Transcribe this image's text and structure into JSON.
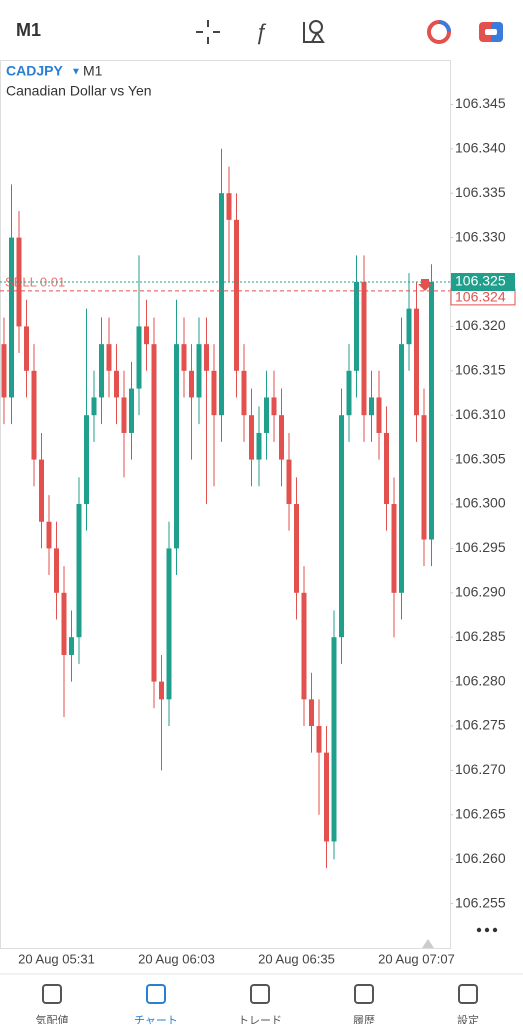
{
  "header": {
    "timeframe": "M1"
  },
  "chart_data": {
    "type": "candlestick",
    "symbol": "CADJPY",
    "timeframe": "M1",
    "subtitle": "Canadian Dollar vs Yen",
    "categories": [
      null,
      null,
      null,
      null,
      null,
      null,
      null,
      "20 Aug 05:31",
      null,
      null,
      null,
      null,
      null,
      null,
      null,
      null,
      null,
      null,
      null,
      null,
      null,
      null,
      null,
      "20 Aug 06:03",
      null,
      null,
      null,
      null,
      null,
      null,
      null,
      null,
      null,
      null,
      null,
      null,
      null,
      null,
      null,
      "20 Aug 06:35",
      null,
      null,
      null,
      null,
      null,
      null,
      null,
      null,
      null,
      null,
      null,
      null,
      null,
      null,
      null,
      "20 Aug 07:07",
      null,
      null
    ],
    "open": [
      106.318,
      106.312,
      106.33,
      106.32,
      106.315,
      106.305,
      106.298,
      106.295,
      106.29,
      106.283,
      106.285,
      106.3,
      106.31,
      106.312,
      106.318,
      106.315,
      106.312,
      106.308,
      106.313,
      106.32,
      106.318,
      106.28,
      106.278,
      106.295,
      106.318,
      106.315,
      106.312,
      106.318,
      106.315,
      106.31,
      106.335,
      106.332,
      106.315,
      106.31,
      106.305,
      106.308,
      106.312,
      106.31,
      106.305,
      106.3,
      106.29,
      106.278,
      106.275,
      106.272,
      106.262,
      106.285,
      106.31,
      106.315,
      106.325,
      106.31,
      106.312,
      106.308,
      106.3,
      106.29,
      106.318,
      106.322,
      106.31,
      106.296
    ],
    "high": [
      106.321,
      106.336,
      106.333,
      106.323,
      106.318,
      106.308,
      106.301,
      106.298,
      106.293,
      106.288,
      106.303,
      106.322,
      106.315,
      106.321,
      106.321,
      106.318,
      106.315,
      106.316,
      106.328,
      106.323,
      106.321,
      106.283,
      106.298,
      106.323,
      106.321,
      106.318,
      106.321,
      106.321,
      106.318,
      106.34,
      106.338,
      106.335,
      106.318,
      106.313,
      106.311,
      106.315,
      106.315,
      106.313,
      106.308,
      106.303,
      106.293,
      106.281,
      106.278,
      106.275,
      106.288,
      106.313,
      106.318,
      106.328,
      106.328,
      106.315,
      106.315,
      106.311,
      106.303,
      106.321,
      106.326,
      106.325,
      106.313,
      106.327
    ],
    "low": [
      106.309,
      106.309,
      106.317,
      106.312,
      106.302,
      106.295,
      106.292,
      106.287,
      106.276,
      106.28,
      106.282,
      106.297,
      106.307,
      106.309,
      106.312,
      106.309,
      106.303,
      106.305,
      106.31,
      106.315,
      106.277,
      106.27,
      106.275,
      106.292,
      106.312,
      106.305,
      106.309,
      106.3,
      106.302,
      106.307,
      106.325,
      106.312,
      106.307,
      106.302,
      106.302,
      106.305,
      106.307,
      106.302,
      106.297,
      106.287,
      106.275,
      106.272,
      106.265,
      106.259,
      106.26,
      106.282,
      106.307,
      106.312,
      106.307,
      106.307,
      106.305,
      106.297,
      106.285,
      106.287,
      106.315,
      106.307,
      106.293,
      106.293
    ],
    "close": [
      106.312,
      106.33,
      106.32,
      106.315,
      106.305,
      106.298,
      106.295,
      106.29,
      106.283,
      106.285,
      106.3,
      106.31,
      106.312,
      106.318,
      106.315,
      106.312,
      106.308,
      106.313,
      106.32,
      106.318,
      106.28,
      106.278,
      106.295,
      106.318,
      106.315,
      106.312,
      106.318,
      106.315,
      106.31,
      106.335,
      106.332,
      106.315,
      106.31,
      106.305,
      106.308,
      106.312,
      106.31,
      106.305,
      106.3,
      106.29,
      106.278,
      106.275,
      106.272,
      106.262,
      106.285,
      106.31,
      106.315,
      106.325,
      106.31,
      106.312,
      106.308,
      106.3,
      106.29,
      106.318,
      106.322,
      106.31,
      106.296,
      106.325
    ],
    "up_color": "#1f9f8c",
    "down_color": "#e2514e",
    "ylim": [
      106.25,
      106.35
    ],
    "yticks": [
      106.345,
      {
        "value": 106.34,
        "label": "106.340"
      },
      106.335,
      {
        "value": 106.33,
        "label": "106.330"
      },
      106.325,
      {
        "value": 106.32,
        "label": "106.320"
      },
      106.315,
      {
        "value": 106.31,
        "label": "106.310"
      },
      106.305,
      {
        "value": 106.3,
        "label": "106.300"
      },
      106.295,
      {
        "value": 106.29,
        "label": "106.290"
      },
      106.285,
      {
        "value": 106.28,
        "label": "106.280"
      },
      106.275,
      {
        "value": 106.27,
        "label": "106.270"
      },
      106.265,
      {
        "value": 106.26,
        "label": "106.260"
      },
      106.255
    ],
    "last_price": 106.325,
    "order_line": {
      "label": "SELL 0.01",
      "value": 106.324,
      "value_label": "106.324"
    }
  },
  "nav": [
    "気配値",
    "チャート",
    "トレード",
    "履歴",
    "設定"
  ]
}
